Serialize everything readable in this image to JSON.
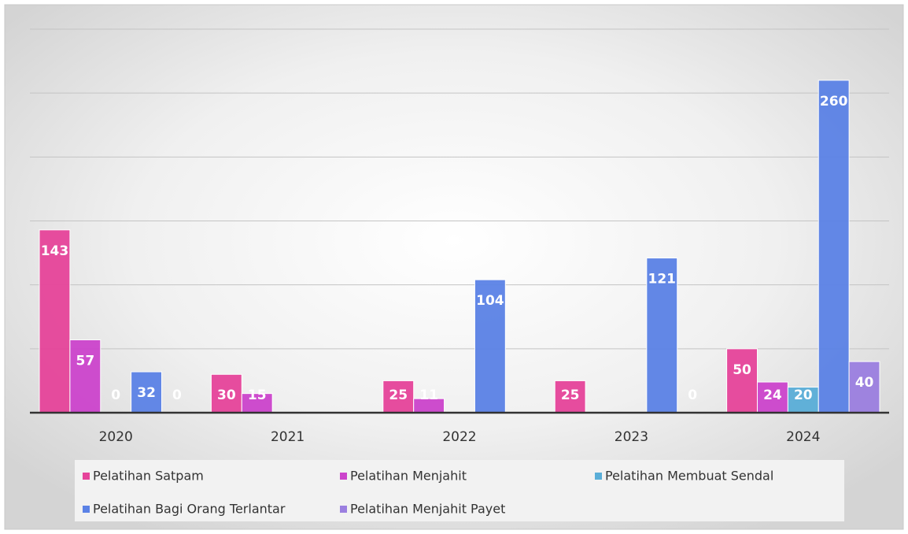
{
  "chart_data": {
    "type": "bar",
    "categories": [
      "2020",
      "2021",
      "2022",
      "2023",
      "2024"
    ],
    "series": [
      {
        "name": "Pelatihan Satpam",
        "color": "#e6449a",
        "values": [
          143,
          30,
          25,
          25,
          50
        ]
      },
      {
        "name": "Pelatihan Menjahit",
        "color": "#cc44cc",
        "values": [
          57,
          15,
          11,
          null,
          24
        ]
      },
      {
        "name": "Pelatihan Membuat Sendal",
        "color": "#5aaed8",
        "values": [
          0,
          null,
          null,
          null,
          20
        ]
      },
      {
        "name": "Pelatihan Bagi Orang Terlantar",
        "color": "#5b82e6",
        "values": [
          32,
          null,
          104,
          121,
          260
        ]
      },
      {
        "name": "Pelatihan Menjahit Payet",
        "color": "#9b7fe0",
        "values": [
          0,
          null,
          null,
          0,
          40
        ]
      }
    ],
    "ylim": [
      0,
      300
    ],
    "yticks": [
      0,
      50,
      100,
      150,
      200,
      250,
      300
    ],
    "grid": true,
    "legend": "bottom"
  }
}
